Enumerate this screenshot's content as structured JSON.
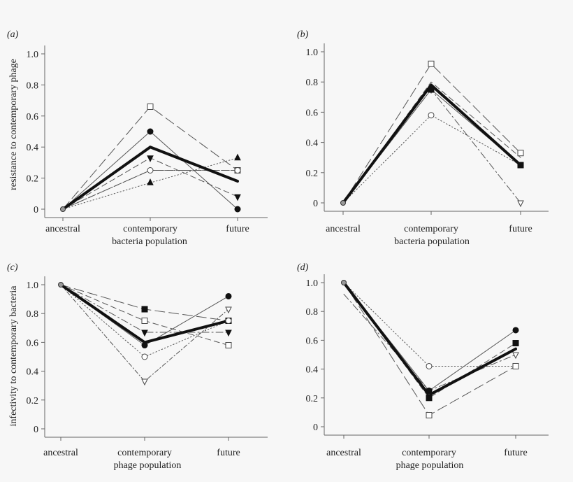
{
  "chart_data": [
    {
      "panel_label": "(a)",
      "type": "line",
      "categories": [
        "ancestral",
        "contemporary",
        "future"
      ],
      "xlabel": "bacteria population",
      "ylabel": "resistance to contemporary phage",
      "ylim": [
        0,
        1.0
      ],
      "yticks": [
        "0",
        "0.2",
        "0.4",
        "0.6",
        "0.8",
        "1.0"
      ],
      "series": [
        {
          "name": "mean",
          "values": [
            0,
            0.4,
            0.18
          ],
          "style": "mean",
          "marker": "none"
        },
        {
          "name": "open-square",
          "values": [
            0,
            0.66,
            0.25
          ],
          "style": "longdash",
          "marker": "square-open"
        },
        {
          "name": "filled-circle",
          "values": [
            0,
            0.5,
            0
          ],
          "style": "solid-thin",
          "marker": "circle-filled"
        },
        {
          "name": "open-circle",
          "values": [
            0,
            0.25,
            0.25
          ],
          "style": "dashdot",
          "marker": "circle-open"
        },
        {
          "name": "filled-down-triangle",
          "values": [
            0,
            0.33,
            0.08
          ],
          "style": "dash",
          "marker": "tri-down-filled"
        },
        {
          "name": "filled-up-triangle",
          "values": [
            0,
            0.17,
            0.33
          ],
          "style": "dot",
          "marker": "tri-up-filled"
        },
        {
          "name": "other",
          "values": [
            0,
            0.25,
            0.25
          ],
          "style": "dashdot2",
          "marker": "none"
        }
      ]
    },
    {
      "panel_label": "(b)",
      "type": "line",
      "categories": [
        "ancestral",
        "contemporary",
        "future"
      ],
      "xlabel": "bacteria population",
      "ylabel": "",
      "ylim": [
        0,
        1.0
      ],
      "yticks": [
        "0",
        "0.2",
        "0.4",
        "0.6",
        "0.8",
        "1.0"
      ],
      "series": [
        {
          "name": "mean",
          "values": [
            0,
            0.78,
            0.25
          ],
          "style": "mean",
          "marker": "none"
        },
        {
          "name": "open-square",
          "values": [
            0,
            0.92,
            0.33
          ],
          "style": "longdash",
          "marker": "square-open"
        },
        {
          "name": "open-circle",
          "values": [
            0,
            0.58,
            0.25
          ],
          "style": "dot",
          "marker": "circle-open"
        },
        {
          "name": "open-down-triangle",
          "values": [
            0,
            0.75,
            0
          ],
          "style": "dashdot",
          "marker": "tri-down-open"
        },
        {
          "name": "filled-square",
          "values": [
            0,
            0.75,
            0.25
          ],
          "style": "solid-thin",
          "marker": "square-filled"
        },
        {
          "name": "other",
          "values": [
            0,
            0.8,
            0.3
          ],
          "style": "dash",
          "marker": "none"
        }
      ]
    },
    {
      "panel_label": "(c)",
      "type": "line",
      "categories": [
        "ancestral",
        "contemporary",
        "future"
      ],
      "xlabel": "phage population",
      "ylabel": "infectivity to contemporary bacteria",
      "ylim": [
        0,
        1.0
      ],
      "yticks": [
        "0",
        "0.2",
        "0.4",
        "0.6",
        "0.8",
        "1.0"
      ],
      "series": [
        {
          "name": "mean",
          "values": [
            1.0,
            0.6,
            0.75
          ],
          "style": "mean",
          "marker": "none"
        },
        {
          "name": "filled-square",
          "values": [
            1.0,
            0.83,
            0.75
          ],
          "style": "longdash",
          "marker": "square-filled"
        },
        {
          "name": "open-square",
          "values": [
            1.0,
            0.75,
            0.58
          ],
          "style": "dash",
          "marker": "square-open"
        },
        {
          "name": "filled-down-triangle",
          "values": [
            1.0,
            0.67,
            0.67
          ],
          "style": "dashdot",
          "marker": "tri-down-filled"
        },
        {
          "name": "open-circle",
          "values": [
            1.0,
            0.5,
            0.75
          ],
          "style": "dot",
          "marker": "circle-open"
        },
        {
          "name": "open-down-triangle",
          "values": [
            1.0,
            0.33,
            0.83
          ],
          "style": "dashdot2",
          "marker": "tri-down-open"
        },
        {
          "name": "filled-circle",
          "values": [
            1.0,
            0.58,
            0.92
          ],
          "style": "solid-thin",
          "marker": "circle-filled"
        }
      ]
    },
    {
      "panel_label": "(d)",
      "type": "line",
      "categories": [
        "ancestral",
        "contemporary",
        "future"
      ],
      "xlabel": "phage population",
      "ylabel": "",
      "ylim": [
        0,
        1.0
      ],
      "yticks": [
        "0",
        "0.2",
        "0.4",
        "0.6",
        "0.8",
        "1.0"
      ],
      "series": [
        {
          "name": "mean",
          "values": [
            1.0,
            0.22,
            0.54
          ],
          "style": "mean",
          "marker": "none"
        },
        {
          "name": "open-circle",
          "values": [
            1.0,
            0.42,
            0.42
          ],
          "style": "dot",
          "marker": "circle-open"
        },
        {
          "name": "open-square",
          "values": [
            1.0,
            0.08,
            0.42
          ],
          "style": "longdash",
          "marker": "square-open"
        },
        {
          "name": "open-down-triangle",
          "values": [
            0.92,
            0.25,
            0.5
          ],
          "style": "dashdot",
          "marker": "tri-down-open"
        },
        {
          "name": "filled-circle",
          "values": [
            1.0,
            0.25,
            0.67
          ],
          "style": "solid-thin",
          "marker": "circle-filled"
        },
        {
          "name": "filled-square",
          "values": [
            1.0,
            0.2,
            0.58
          ],
          "style": "dash",
          "marker": "square-filled"
        }
      ]
    }
  ]
}
